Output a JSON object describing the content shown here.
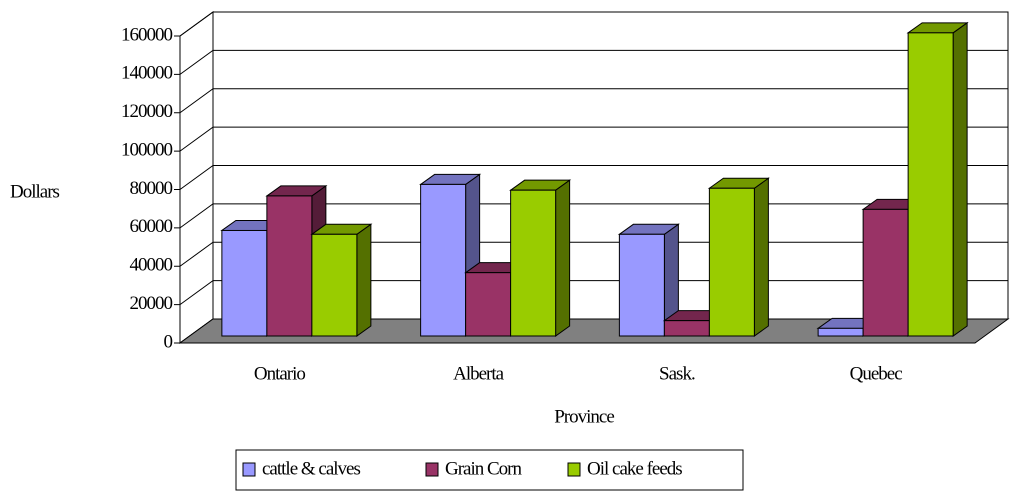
{
  "chart_data": {
    "type": "bar3d",
    "y_label": "Dollars",
    "x_label": "Province",
    "categories": [
      "Ontario",
      "Alberta",
      "Sask.",
      "Quebec"
    ],
    "series": [
      {
        "name": "cattle & calves",
        "color": "#9999ff",
        "values": [
          55000,
          79000,
          53000,
          4000
        ]
      },
      {
        "name": "Grain Corn",
        "color": "#993366",
        "values": [
          73000,
          33000,
          8000,
          66000
        ]
      },
      {
        "name": "Oil cake feeds",
        "color": "#99cc00",
        "values": [
          53000,
          76000,
          77000,
          158000
        ]
      }
    ],
    "ylim": [
      0,
      160000
    ],
    "yticks": [
      0,
      20000,
      40000,
      60000,
      80000,
      100000,
      120000,
      140000,
      160000
    ],
    "grid": true,
    "floor_color": "#808080",
    "legend": "bottom"
  }
}
